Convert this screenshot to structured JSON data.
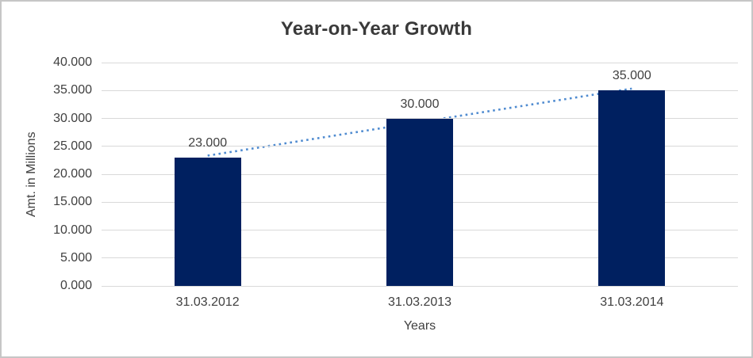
{
  "chart_data": {
    "type": "bar",
    "title": "Year-on-Year Growth",
    "categories": [
      "31.03.2012",
      "31.03.2013",
      "31.03.2014"
    ],
    "values": [
      23.0,
      30.0,
      35.0
    ],
    "data_labels": [
      "23.000",
      "30.000",
      "35.000"
    ],
    "xlabel": "Years",
    "ylabel": "Amt. in Millions",
    "ylim": [
      0,
      40
    ],
    "ytick_step": 5,
    "ytick_labels": [
      "0.000",
      "5.000",
      "10.000",
      "15.000",
      "20.000",
      "25.000",
      "30.000",
      "35.000",
      "40.000"
    ],
    "grid": true,
    "legend": "none",
    "trendline": {
      "type": "linear",
      "style": "dotted"
    },
    "colors": {
      "bar": "#002060",
      "trendline": "#4F8BD0",
      "gridline": "#D9D9D9",
      "text": "#404040",
      "title": "#3A3A3A",
      "frame_border": "#C6C6C6",
      "background": "#FFFFFF"
    }
  }
}
